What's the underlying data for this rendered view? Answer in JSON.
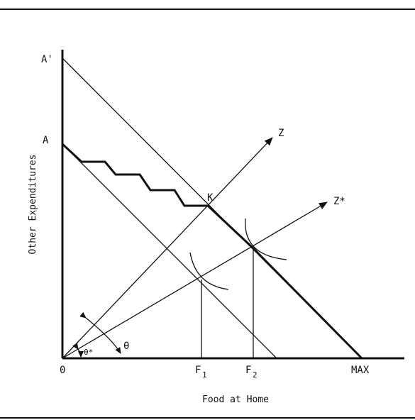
{
  "diagram": {
    "axes": {
      "y_title": "Other Expenditures",
      "x_title": "Food at Home",
      "origin": "0"
    },
    "y_ticks": [
      "A'",
      "A"
    ],
    "x_ticks": [
      "F",
      "1",
      "F",
      "2",
      "MAX"
    ],
    "ray_labels": [
      "Z",
      "Z*"
    ],
    "point_label": "K",
    "angle_labels": [
      "θ",
      "θ*"
    ]
  }
}
